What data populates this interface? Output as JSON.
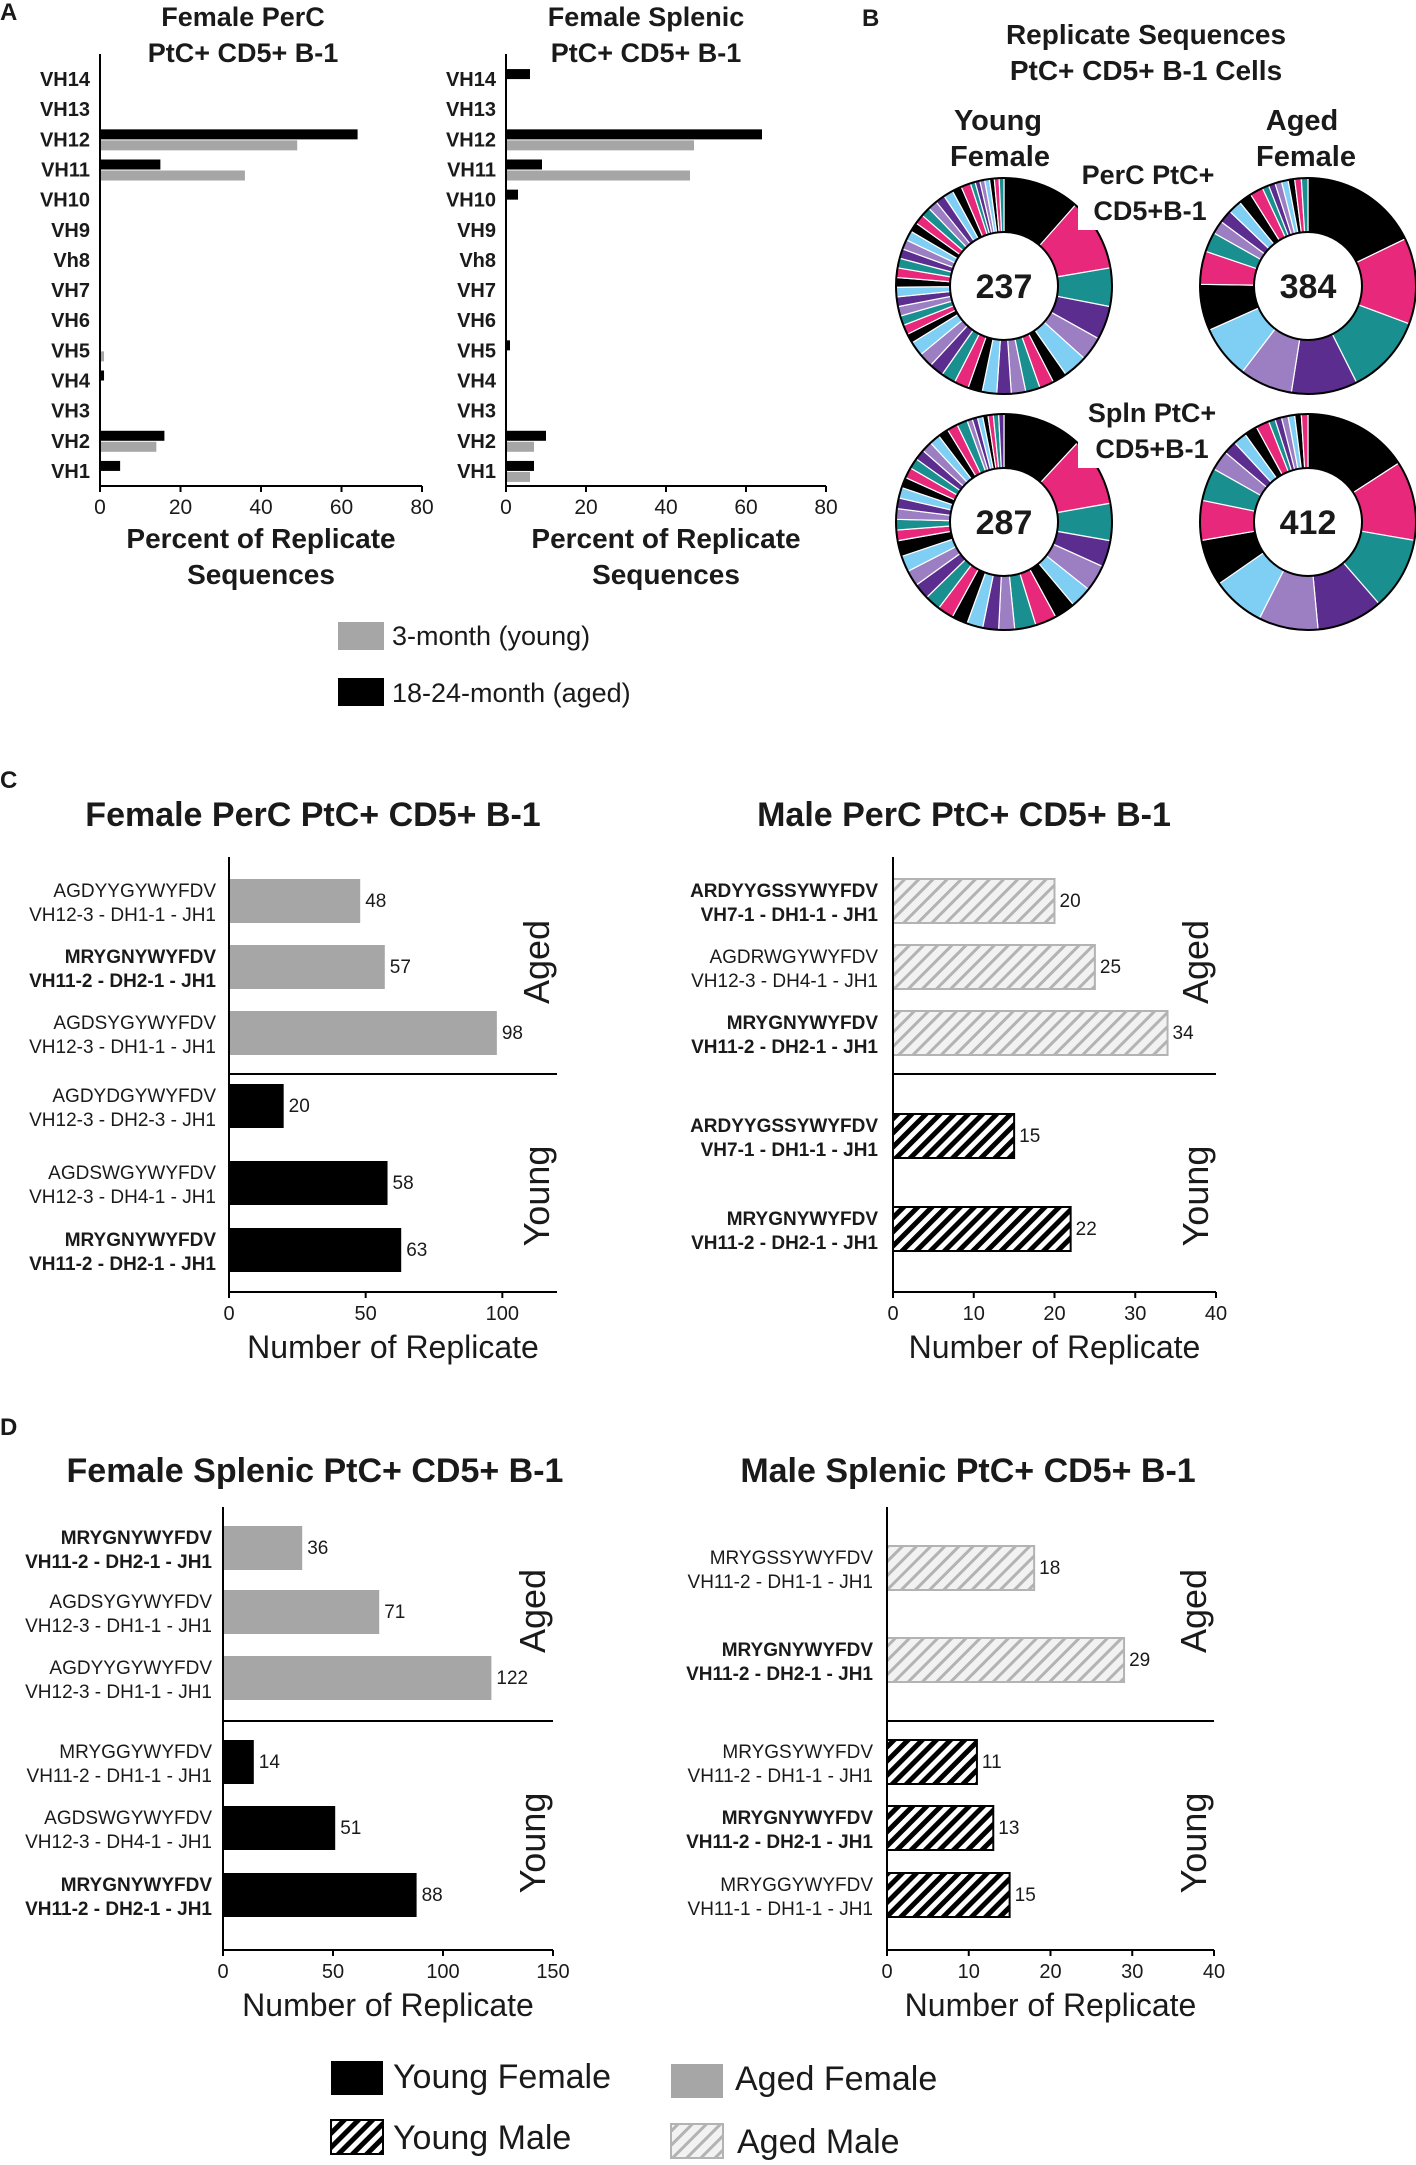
{
  "colors": {
    "young": "#000000",
    "aged": "#a6a6a6",
    "donut_palette": [
      "#000000",
      "#e8287a",
      "#1a8f8f",
      "#5b2d8e",
      "#9b7fc2",
      "#7fcff5",
      "#000000",
      "#e8287a",
      "#1a8f8f",
      "#9b7fc2",
      "#5b2d8e",
      "#7fcff5"
    ]
  },
  "panels": {
    "a": "A",
    "b": "B",
    "c": "C",
    "d": "D"
  },
  "legend_a": {
    "young": "3-month (young)",
    "aged": "18-24-month (aged)"
  },
  "legend_cd": {
    "young_female": "Young Female",
    "aged_female": "Aged Female",
    "young_male": "Young Male",
    "aged_male": "Aged Male"
  },
  "donuts": {
    "title_line1": "Replicate Sequences",
    "title_line2": "PtC+ CD5+ B-1 Cells",
    "col_young_1": "Young",
    "col_young_2": "Female",
    "col_aged_1": "Aged",
    "col_aged_2": "Female",
    "row1_1": "PerC PtC+",
    "row1_2": "CD5+B-1",
    "row2_1": "Spln PtC+",
    "row2_2": "CD5+B-1"
  },
  "chart_data": [
    {
      "id": "A-left",
      "type": "bar",
      "orientation": "horizontal",
      "title": "Female PerC\nPtC+ CD5+ B-1",
      "title_lines": [
        "Female PerC",
        "PtC+ CD5+ B-1"
      ],
      "categories": [
        "VH14",
        "VH13",
        "VH12",
        "VH11",
        "VH10",
        "VH9",
        "Vh8",
        "VH7",
        "VH6",
        "VH5",
        "VH4",
        "VH3",
        "VH2",
        "VH1"
      ],
      "series": [
        {
          "name": "18-24-month (aged)",
          "values": [
            0,
            0,
            64,
            15,
            0,
            0,
            0,
            0,
            0,
            0,
            1,
            0,
            16,
            5
          ]
        },
        {
          "name": "3-month (young)",
          "values": [
            0,
            0,
            49,
            36,
            0,
            0,
            0,
            0,
            0,
            1,
            0,
            0,
            14,
            0
          ]
        }
      ],
      "xlabel": "Percent of Replicate\nSequences",
      "xlabel_lines": [
        "Percent of Replicate",
        "Sequences"
      ],
      "xlim": [
        0,
        80
      ],
      "xticks": [
        "0",
        "20",
        "40",
        "60",
        "80"
      ]
    },
    {
      "id": "A-right",
      "type": "bar",
      "orientation": "horizontal",
      "title": "Female Splenic\nPtC+ CD5+ B-1",
      "title_lines": [
        "Female Splenic",
        "PtC+ CD5+ B-1"
      ],
      "categories": [
        "VH14",
        "VH13",
        "VH12",
        "VH11",
        "VH10",
        "VH9",
        "Vh8",
        "VH7",
        "VH6",
        "VH5",
        "VH4",
        "VH3",
        "VH2",
        "VH1"
      ],
      "series": [
        {
          "name": "18-24-month (aged)",
          "values": [
            6,
            0,
            64,
            9,
            3,
            0,
            0,
            0,
            0,
            1,
            0,
            0,
            10,
            7
          ]
        },
        {
          "name": "3-month (young)",
          "values": [
            0,
            0,
            47,
            46,
            0,
            0,
            0,
            0,
            0,
            0,
            0,
            0,
            7,
            6
          ]
        }
      ],
      "xlabel": "Percent of Replicate\nSequences",
      "xlabel_lines": [
        "Percent of Replicate",
        "Sequences"
      ],
      "xlim": [
        0,
        80
      ],
      "xticks": [
        "0",
        "20",
        "40",
        "60",
        "80"
      ]
    },
    {
      "id": "B",
      "type": "pie",
      "style": "donut",
      "donuts": [
        {
          "name": "Young Female PerC",
          "total": "237",
          "values": [
            16,
            15,
            8,
            7,
            5,
            5,
            3,
            3,
            3,
            3,
            3,
            3,
            3,
            3,
            3,
            3,
            3,
            3,
            2,
            2,
            2,
            2,
            2,
            2,
            2,
            2,
            2,
            2,
            2,
            2,
            2,
            2,
            2,
            2,
            2,
            2,
            2,
            2,
            1,
            1,
            1,
            1,
            1,
            1,
            1
          ]
        },
        {
          "name": "Aged Female PerC",
          "total": "384",
          "values": [
            18,
            13,
            12,
            10,
            8,
            8,
            7,
            5,
            3,
            2,
            2,
            2,
            2,
            2,
            1,
            1,
            1,
            1,
            1,
            1,
            1
          ]
        },
        {
          "name": "Young Female Spln",
          "total": "287",
          "values": [
            15,
            13,
            7,
            5,
            5,
            4,
            4,
            4,
            4,
            3,
            3,
            3,
            3,
            3,
            3,
            3,
            3,
            3,
            3,
            2,
            2,
            2,
            2,
            2,
            2,
            2,
            2,
            2,
            2,
            2,
            2,
            2,
            2,
            1,
            1,
            1,
            1,
            1,
            1,
            1
          ]
        },
        {
          "name": "Aged Female Spln",
          "total": "412",
          "values": [
            16,
            12,
            11,
            10,
            9,
            8,
            7,
            6,
            5,
            3,
            2,
            2,
            2,
            2,
            1,
            1,
            1,
            1,
            1,
            1
          ]
        }
      ]
    },
    {
      "id": "C-left",
      "type": "bar",
      "orientation": "horizontal",
      "title": "Female PerC PtC+ CD5+ B-1",
      "group_labels": [
        "Aged",
        "Young"
      ],
      "bars": [
        {
          "group": "Aged",
          "line1": "AGDYYGYWYFDV",
          "line2": "VH12-3 - DH1-1 - JH1",
          "bold": false,
          "value": 48,
          "label": "48"
        },
        {
          "group": "Aged",
          "line1": "MRYGNYWYFDV",
          "line2": "VH11-2 - DH2-1 - JH1",
          "bold": true,
          "value": 57,
          "label": "57"
        },
        {
          "group": "Aged",
          "line1": "AGDSYGYWYFDV",
          "line2": "VH12-3 - DH1-1 - JH1",
          "bold": false,
          "value": 98,
          "label": "98"
        },
        {
          "group": "Young",
          "line1": "AGDYDGYWYFDV",
          "line2": "VH12-3 - DH2-3 - JH1",
          "bold": false,
          "value": 20,
          "label": "20"
        },
        {
          "group": "Young",
          "line1": "AGDSWGYWYFDV",
          "line2": "VH12-3 - DH4-1 - JH1",
          "bold": false,
          "value": 58,
          "label": "58"
        },
        {
          "group": "Young",
          "line1": "MRYGNYWYFDV",
          "line2": "VH11-2 - DH2-1 - JH1",
          "bold": true,
          "value": 63,
          "label": "63"
        }
      ],
      "xlabel": "Number of Replicate",
      "xlim": [
        0,
        120
      ],
      "xticks": [
        {
          "v": 0,
          "t": "0"
        },
        {
          "v": 50,
          "t": "50"
        },
        {
          "v": 100,
          "t": "100"
        }
      ]
    },
    {
      "id": "C-right",
      "type": "bar",
      "orientation": "horizontal",
      "title": "Male PerC PtC+ CD5+ B-1",
      "group_labels": [
        "Aged",
        "Young"
      ],
      "bars": [
        {
          "group": "Aged",
          "line1": "ARDYYGSSYWYFDV",
          "line2": "VH7-1 - DH1-1 - JH1",
          "bold": true,
          "value": 20,
          "label": "20"
        },
        {
          "group": "Aged",
          "line1": "AGDRWGYWYFDV",
          "line2": "VH12-3 - DH4-1 - JH1",
          "bold": false,
          "value": 25,
          "label": "25"
        },
        {
          "group": "Aged",
          "line1": "MRYGNYWYFDV",
          "line2": "VH11-2 - DH2-1 - JH1",
          "bold": true,
          "value": 34,
          "label": "34"
        },
        {
          "group": "Young",
          "line1": "ARDYYGSSYWYFDV",
          "line2": "VH7-1 - DH1-1 - JH1",
          "bold": true,
          "value": 15,
          "label": "15"
        },
        {
          "group": "Young",
          "line1": "MRYGNYWYFDV",
          "line2": "VH11-2 - DH2-1 - JH1",
          "bold": true,
          "value": 22,
          "label": "22"
        }
      ],
      "xlabel": "Number of Replicate",
      "xlim": [
        0,
        40
      ],
      "xticks": [
        {
          "v": 0,
          "t": "0"
        },
        {
          "v": 10,
          "t": "10"
        },
        {
          "v": 20,
          "t": "20"
        },
        {
          "v": 30,
          "t": "30"
        },
        {
          "v": 40,
          "t": "40"
        }
      ]
    },
    {
      "id": "D-left",
      "type": "bar",
      "orientation": "horizontal",
      "title": "Female Splenic PtC+ CD5+ B-1",
      "group_labels": [
        "Aged",
        "Young"
      ],
      "bars": [
        {
          "group": "Aged",
          "line1": "MRYGNYWYFDV",
          "line2": "VH11-2 - DH2-1 - JH1",
          "bold": true,
          "value": 36,
          "label": "36"
        },
        {
          "group": "Aged",
          "line1": "AGDSYGYWYFDV",
          "line2": "VH12-3 - DH1-1 - JH1",
          "bold": false,
          "value": 71,
          "label": "71"
        },
        {
          "group": "Aged",
          "line1": "AGDYYGYWYFDV",
          "line2": "VH12-3 - DH1-1 - JH1",
          "bold": false,
          "value": 122,
          "label": "122"
        },
        {
          "group": "Young",
          "line1": "MRYGGYWYFDV",
          "line2": "VH11-2 - DH1-1 - JH1",
          "bold": false,
          "value": 14,
          "label": "14"
        },
        {
          "group": "Young",
          "line1": "AGDSWGYWYFDV",
          "line2": "VH12-3 - DH4-1 - JH1",
          "bold": false,
          "value": 51,
          "label": "51"
        },
        {
          "group": "Young",
          "line1": "MRYGNYWYFDV",
          "line2": "VH11-2 - DH2-1 - JH1",
          "bold": true,
          "value": 88,
          "label": "88"
        }
      ],
      "xlabel": "Number of Replicate",
      "xlim": [
        0,
        150
      ],
      "xticks": [
        {
          "v": 0,
          "t": "0"
        },
        {
          "v": 50,
          "t": "50"
        },
        {
          "v": 100,
          "t": "100"
        },
        {
          "v": 150,
          "t": "150"
        }
      ]
    },
    {
      "id": "D-right",
      "type": "bar",
      "orientation": "horizontal",
      "title": "Male Splenic PtC+ CD5+ B-1",
      "group_labels": [
        "Aged",
        "Young"
      ],
      "bars": [
        {
          "group": "Aged",
          "line1": "MRYGSSYWYFDV",
          "line2": "VH11-2 - DH1-1 - JH1",
          "bold": false,
          "value": 18,
          "label": "18"
        },
        {
          "group": "Aged",
          "line1": "MRYGNYWYFDV",
          "line2": "VH11-2 - DH2-1 - JH1",
          "bold": true,
          "value": 29,
          "label": "29"
        },
        {
          "group": "Young",
          "line1": "MRYGSYWYFDV",
          "line2": "VH11-2 - DH1-1 - JH1",
          "bold": false,
          "value": 11,
          "label": "11"
        },
        {
          "group": "Young",
          "line1": "MRYGNYWYFDV",
          "line2": "VH11-2 - DH2-1 - JH1",
          "bold": true,
          "value": 13,
          "label": "13"
        },
        {
          "group": "Young",
          "line1": "MRYGGYWYFDV",
          "line2": "VH11-1 - DH1-1 - JH1",
          "bold": false,
          "value": 15,
          "label": "15"
        }
      ],
      "xlabel": "Number of Replicate",
      "xlim": [
        0,
        40
      ],
      "xticks": [
        {
          "v": 0,
          "t": "0"
        },
        {
          "v": 10,
          "t": "10"
        },
        {
          "v": 20,
          "t": "20"
        },
        {
          "v": 30,
          "t": "30"
        },
        {
          "v": 40,
          "t": "40"
        }
      ]
    }
  ]
}
